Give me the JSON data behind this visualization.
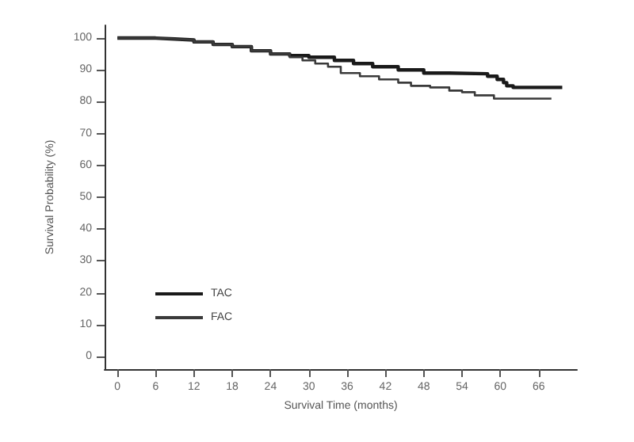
{
  "chart_data": {
    "type": "step",
    "xlabel": "Survival Time (months)",
    "ylabel": "Survival Probability (%)",
    "xlim": [
      -2,
      72
    ],
    "xticks": [
      0,
      6,
      12,
      18,
      24,
      30,
      36,
      42,
      48,
      54,
      60,
      66
    ],
    "ylim": [
      -4,
      104
    ],
    "yticks": [
      0,
      10,
      20,
      30,
      40,
      50,
      60,
      70,
      80,
      90,
      100
    ],
    "grid": false,
    "legend": "bottom left",
    "marker": "none",
    "line_style": "solid",
    "series": [
      {
        "name": "TAC",
        "color": "#1a1a1a",
        "x": [
          0,
          6,
          9,
          12,
          15,
          18,
          21,
          24,
          27,
          30,
          34,
          37,
          40,
          44,
          48,
          52,
          58,
          59.5,
          60.5,
          61,
          62,
          69.7
        ],
        "values": [
          100,
          99.7,
          99.4,
          98.8,
          98,
          97.3,
          96,
          95,
          94.5,
          94,
          93,
          92,
          91,
          90,
          89,
          88.8,
          88,
          87,
          86,
          85,
          84.5,
          84.5
        ]
      },
      {
        "name": "FAC",
        "color": "#3a3a3a",
        "x": [
          0,
          6,
          9,
          12,
          15,
          18,
          21,
          24,
          27,
          29,
          31,
          33,
          35,
          38,
          41,
          44,
          46,
          49,
          52,
          54,
          56,
          59,
          68
        ],
        "values": [
          100,
          99.7,
          99.4,
          98.8,
          98,
          97.3,
          96,
          95,
          94,
          93,
          92,
          91,
          89,
          88,
          87,
          86,
          85,
          84.5,
          83.5,
          83,
          82,
          81,
          81
        ]
      }
    ]
  }
}
